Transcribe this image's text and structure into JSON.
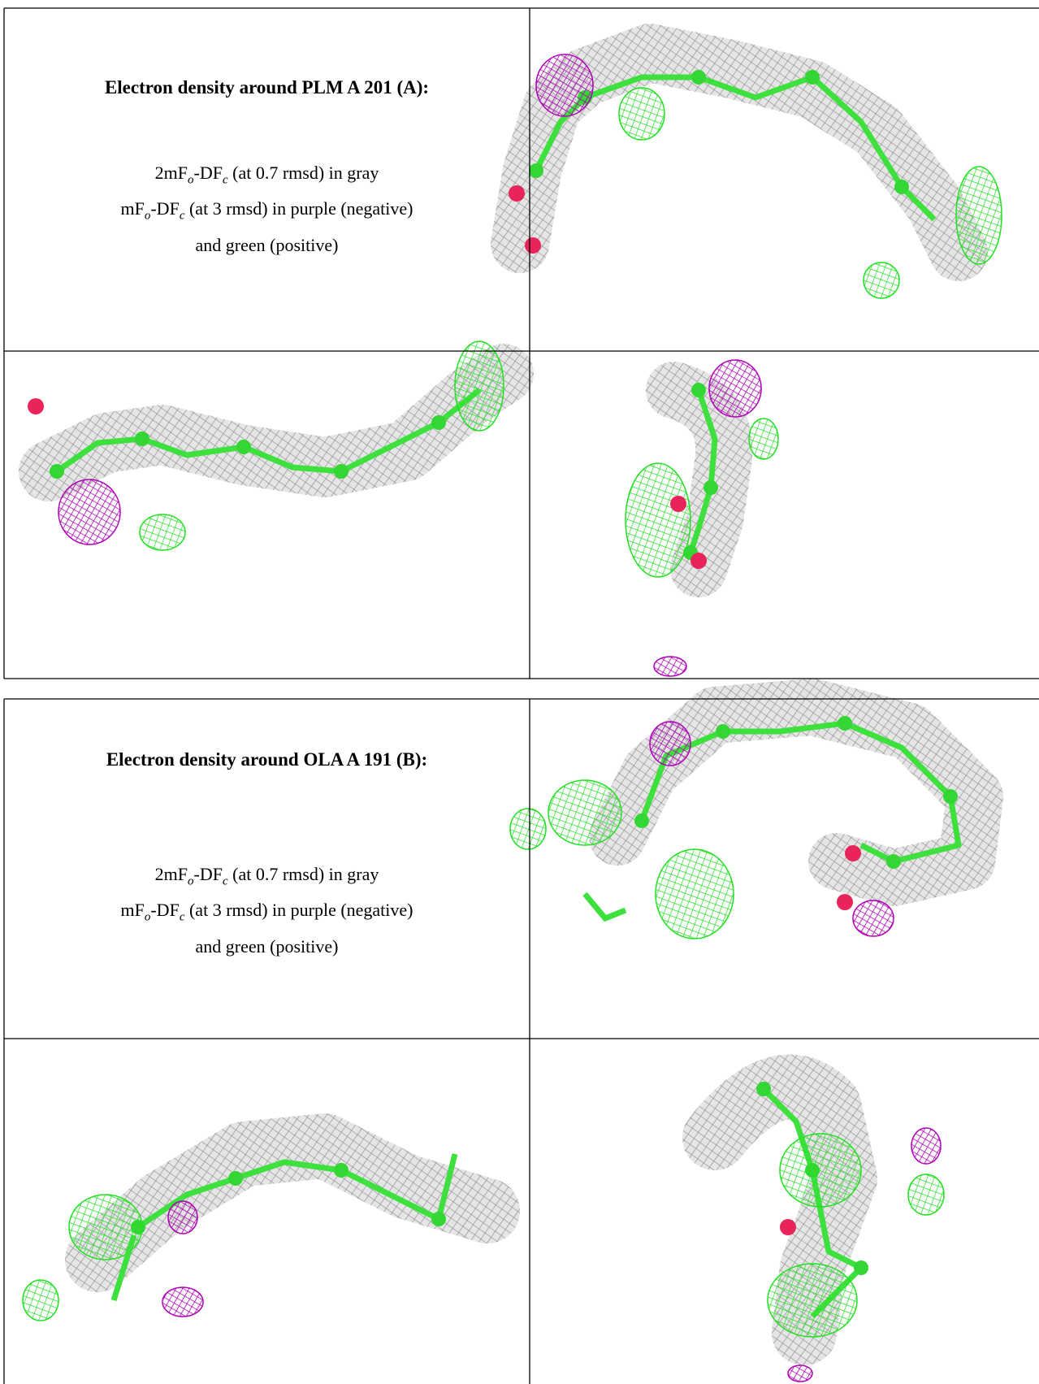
{
  "sections": [
    {
      "title": "Electron density around PLM A 201 (A):",
      "legend": [
        [
          {
            "text": "2mF"
          },
          {
            "text": "o",
            "sub": true
          },
          {
            "text": "-DF"
          },
          {
            "text": "c",
            "sub": true
          },
          {
            "text": " (at 0.7 rmsd) in gray"
          }
        ],
        [
          {
            "text": "mF"
          },
          {
            "text": "o",
            "sub": true
          },
          {
            "text": "-DF"
          },
          {
            "text": "c",
            "sub": true
          },
          {
            "text": " (at 3 rmsd) in purple (negative)"
          }
        ],
        [
          {
            "text": "and green (positive)"
          }
        ]
      ]
    },
    {
      "title": "Electron density around OLA A 191 (B):",
      "legend": [
        [
          {
            "text": "2mF"
          },
          {
            "text": "o",
            "sub": true
          },
          {
            "text": "-DF"
          },
          {
            "text": "c",
            "sub": true
          },
          {
            "text": " (at 0.7 rmsd) in gray"
          }
        ],
        [
          {
            "text": "mF"
          },
          {
            "text": "o",
            "sub": true
          },
          {
            "text": "-DF"
          },
          {
            "text": "c",
            "sub": true
          },
          {
            "text": " (at 3 rmsd) in purple (negative)"
          }
        ],
        [
          {
            "text": "and green (positive)"
          }
        ]
      ]
    }
  ]
}
